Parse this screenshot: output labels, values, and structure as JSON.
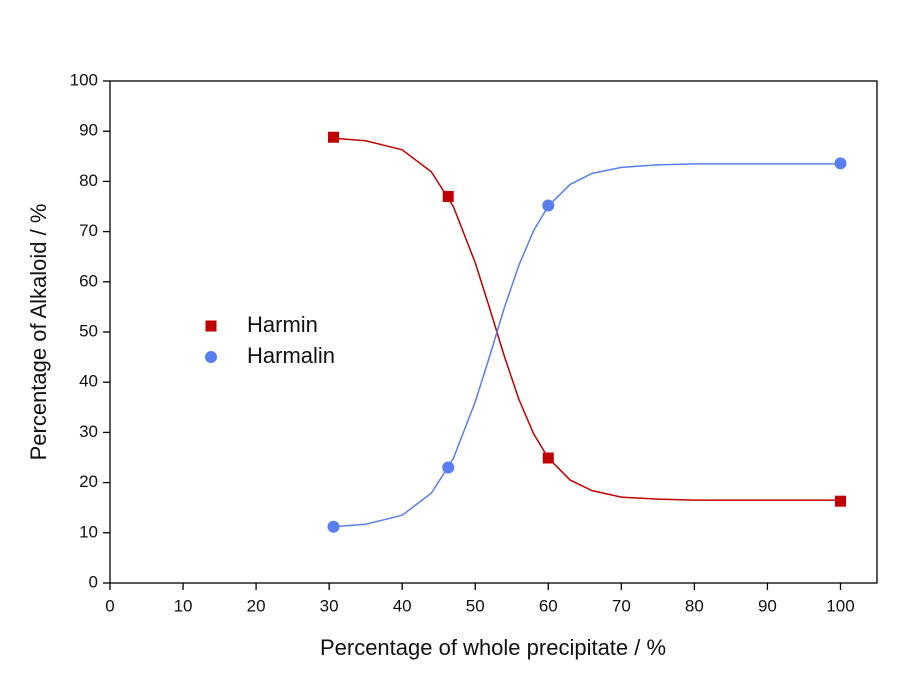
{
  "chart_data": {
    "type": "scatter",
    "x_label": "Percentage of whole precipitate / %",
    "y_label": "Percentage of Alkaloid / %",
    "xlim": [
      0,
      105
    ],
    "ylim": [
      0,
      100
    ],
    "xticks": [
      0,
      10,
      20,
      30,
      40,
      50,
      60,
      70,
      80,
      90,
      100
    ],
    "yticks": [
      0,
      10,
      20,
      30,
      40,
      50,
      60,
      70,
      80,
      90,
      100
    ],
    "grid": false,
    "legend": "left",
    "series": [
      {
        "name": "Harmin",
        "color": "#c00000",
        "marker": "square",
        "x": [
          30.6,
          46.3,
          60,
          100
        ],
        "values": [
          88.8,
          77,
          24.9,
          16.3
        ]
      },
      {
        "name": "Harmalin",
        "color": "#5a7ef0",
        "marker": "circle",
        "x": [
          30.6,
          46.3,
          60,
          100
        ],
        "values": [
          11.2,
          23,
          75.2,
          83.6
        ]
      }
    ],
    "fits": [
      {
        "color": "#c00000",
        "x": [
          30.6,
          35,
          40,
          44,
          47,
          50,
          52,
          54,
          56,
          58,
          60,
          63,
          66,
          70,
          75,
          80,
          90,
          100
        ],
        "values": [
          88.6,
          88.1,
          86.3,
          81.9,
          75.0,
          63.8,
          54.6,
          45.1,
          36.5,
          29.7,
          24.9,
          20.5,
          18.4,
          17.1,
          16.7,
          16.5,
          16.5,
          16.5
        ]
      },
      {
        "color": "#5a7ef0",
        "x": [
          30.6,
          35,
          40,
          44,
          47,
          50,
          52,
          54,
          56,
          58,
          60,
          63,
          66,
          70,
          75,
          80,
          90,
          100
        ],
        "values": [
          11.2,
          11.7,
          13.5,
          17.9,
          24.8,
          36.1,
          45.3,
          54.9,
          63.4,
          70.2,
          75.1,
          79.4,
          81.6,
          82.8,
          83.3,
          83.5,
          83.5,
          83.5
        ]
      }
    ]
  }
}
